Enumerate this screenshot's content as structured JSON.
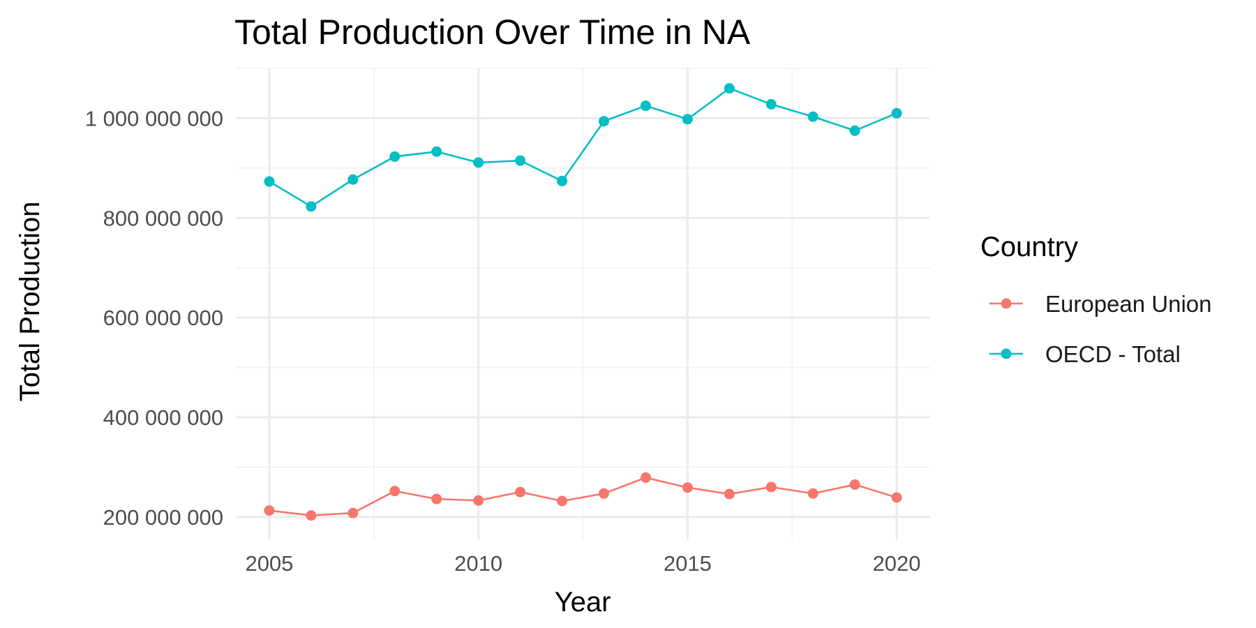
{
  "chart_data": {
    "type": "line",
    "title": "Total Production Over Time in NA",
    "xlabel": "Year",
    "ylabel": "Total Production",
    "x": [
      2005,
      2006,
      2007,
      2008,
      2009,
      2010,
      2011,
      2012,
      2013,
      2014,
      2015,
      2016,
      2017,
      2018,
      2019,
      2020
    ],
    "xlim": [
      2004.2,
      2020.8
    ],
    "ylim": [
      155000000,
      1100000000
    ],
    "x_ticks": [
      2005,
      2010,
      2015,
      2020
    ],
    "x_tick_labels": [
      "2005",
      "2010",
      "2015",
      "2020"
    ],
    "y_ticks": [
      200000000,
      400000000,
      600000000,
      800000000,
      1000000000
    ],
    "y_tick_labels": [
      "200 000 000",
      "400 000 000",
      "600 000 000",
      "800 000 000",
      "1 000 000 000"
    ],
    "grid": true,
    "legend": {
      "title": "Country",
      "position": "right"
    },
    "series": [
      {
        "name": "European Union",
        "color": "#F8766D",
        "values": [
          213000000,
          203000000,
          208000000,
          252000000,
          236000000,
          233000000,
          250000000,
          232000000,
          247000000,
          279000000,
          259000000,
          246000000,
          260000000,
          247000000,
          265000000,
          239000000
        ]
      },
      {
        "name": "OECD - Total",
        "color": "#00BFC4",
        "values": [
          873000000,
          823000000,
          877000000,
          923000000,
          933000000,
          911000000,
          915000000,
          874000000,
          994000000,
          1025000000,
          998000000,
          1060000000,
          1028000000,
          1003000000,
          975000000,
          1010000000
        ]
      }
    ]
  }
}
